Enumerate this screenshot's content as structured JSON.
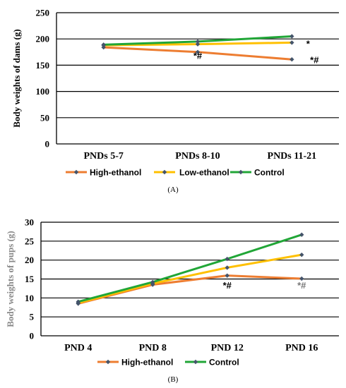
{
  "colors": {
    "high_ethanol": "#ED7D31",
    "low_ethanol": "#FFC000",
    "control": "#21A637",
    "marker": "#44546A",
    "axis": "#000000"
  },
  "chart_data": [
    {
      "type": "line",
      "panel_label": "(A)",
      "ylabel": "Body weights of dams (g)",
      "categories": [
        "PNDs 5-7",
        "PNDs 8-10",
        "PNDs 11-21"
      ],
      "ylim": [
        0,
        250
      ],
      "yticks": [
        0,
        50,
        100,
        150,
        200,
        250
      ],
      "grid": true,
      "legend_position": "bottom",
      "series": [
        {
          "name": "High-ethanol",
          "key": "high_ethanol",
          "values": [
            184,
            175,
            161
          ]
        },
        {
          "name": "Low-ethanol",
          "key": "low_ethanol",
          "values": [
            188,
            190,
            193
          ]
        },
        {
          "name": "Control",
          "key": "control",
          "values": [
            189,
            195,
            205
          ]
        }
      ],
      "annotations": [
        {
          "text": "*#",
          "category": 1,
          "value": 168
        },
        {
          "text": "*",
          "category": 2,
          "value": 191
        },
        {
          "text": "*#",
          "category": 2,
          "value": 160
        }
      ]
    },
    {
      "type": "line",
      "panel_label": "(B)",
      "ylabel": "Body weights of pups (g)",
      "categories": [
        "PND 4",
        "PND 8",
        "PND 12",
        "PND 16"
      ],
      "ylim": [
        0,
        30
      ],
      "yticks": [
        0,
        5,
        10,
        15,
        20,
        25,
        30
      ],
      "grid": true,
      "legend_position": "bottom",
      "series": [
        {
          "name": "High-ethanol",
          "key": "high_ethanol",
          "values": [
            8.5,
            13.5,
            15.9,
            15.1
          ]
        },
        {
          "name": "Low-ethanol",
          "key": "low_ethanol",
          "values": [
            8.7,
            13.8,
            18.0,
            21.4
          ]
        },
        {
          "name": "Control",
          "key": "control",
          "values": [
            9.0,
            14.2,
            20.3,
            26.7
          ]
        }
      ],
      "legend_series": [
        "high_ethanol",
        "control"
      ],
      "annotations": [
        {
          "text": "*#",
          "category": 2,
          "value": 13.3
        },
        {
          "text": "*#",
          "category": 3,
          "value": 13.3,
          "gray": true
        }
      ]
    }
  ]
}
